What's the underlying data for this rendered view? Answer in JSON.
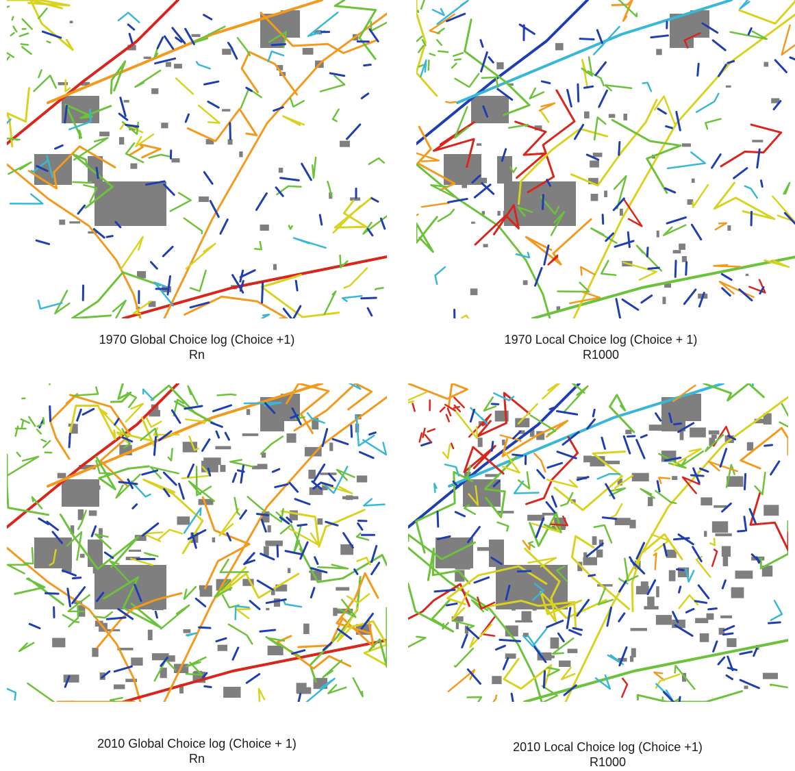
{
  "panels": [
    {
      "caption_line1": "1970 Global Choice log (Choice +1)",
      "caption_line2": "Rn",
      "variant": "global",
      "dense": false,
      "seed": 11
    },
    {
      "caption_line1": "1970 Local Choice log (Choice + 1)",
      "caption_line2": "R1000",
      "variant": "local",
      "dense": false,
      "seed": 23
    },
    {
      "caption_line1": "2010 Global Choice log (Choice + 1)",
      "caption_line2": "Rn",
      "variant": "global",
      "dense": true,
      "seed": 37
    },
    {
      "caption_line1": "2010 Local Choice log (Choice +1)",
      "caption_line2": "R1000",
      "variant": "local",
      "dense": true,
      "seed": 53
    }
  ],
  "colors": {
    "building": "#7f7f7f",
    "red": "#d9261c",
    "orange": "#f39a1e",
    "yellow": "#d9d21f",
    "green": "#6cc23a",
    "cyan": "#38b7d6",
    "blue": "#1f3fb0"
  }
}
